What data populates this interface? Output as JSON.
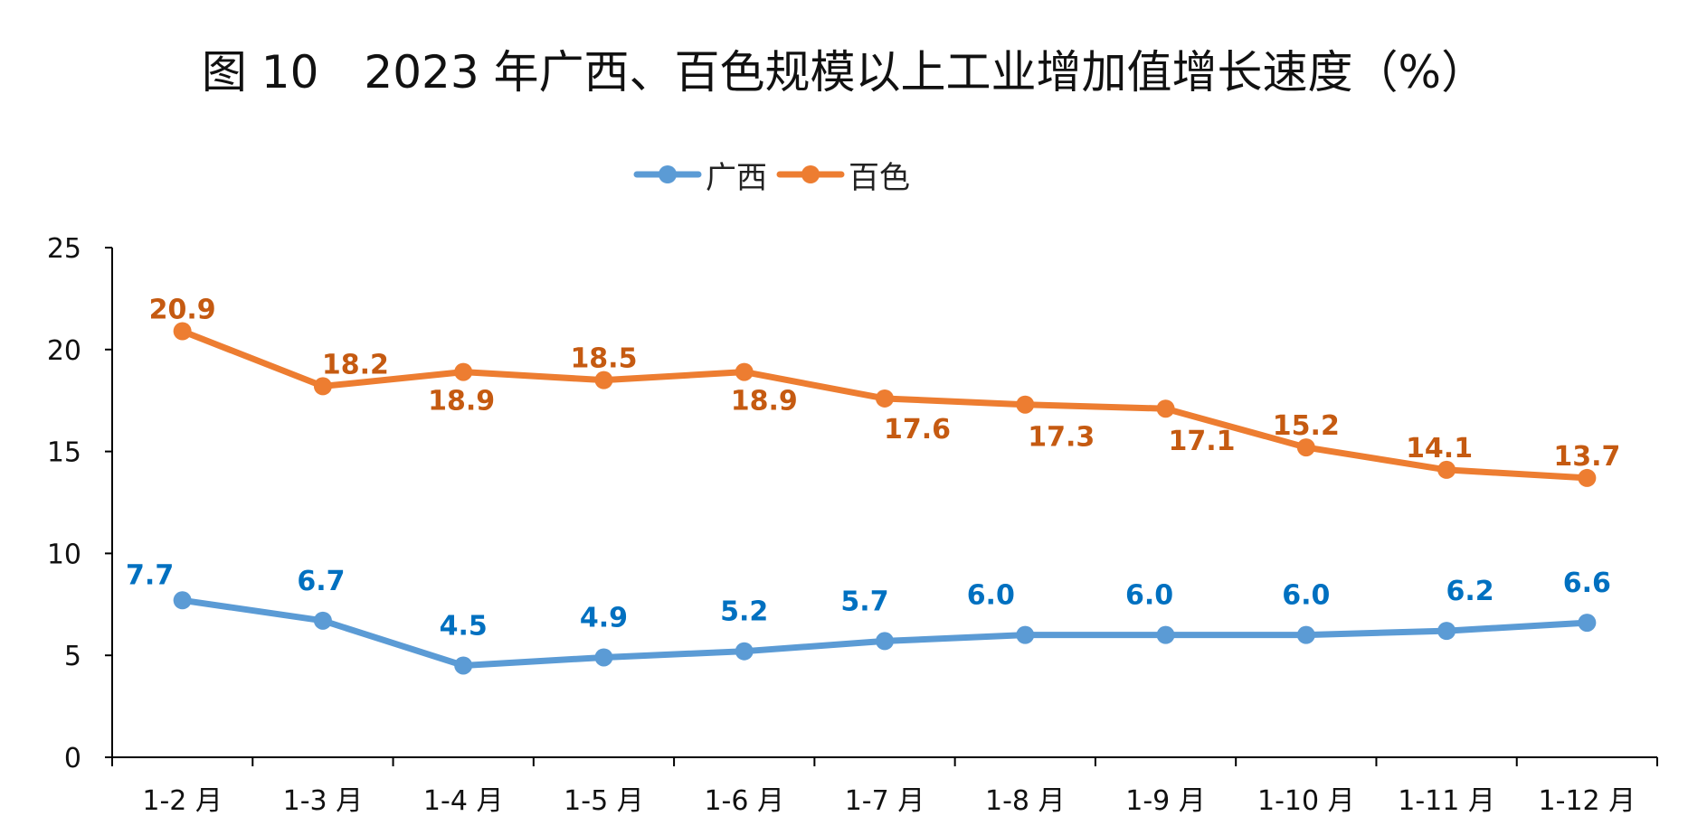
{
  "chart_data": {
    "type": "line",
    "title": "图 10　2023 年广西、百色规模以上工业增加值增长速度（%）",
    "categories": [
      "1-2 月",
      "1-3 月",
      "1-4 月",
      "1-5 月",
      "1-6 月",
      "1-7 月",
      "1-8 月",
      "1-9 月",
      "1-10 月",
      "1-11 月",
      "1-12 月"
    ],
    "ylim": [
      0,
      25
    ],
    "yticks": [
      0,
      5,
      10,
      15,
      20,
      25
    ],
    "grid": false,
    "legend_position": "top-center",
    "series": [
      {
        "name": "广西",
        "color": "#5B9BD5",
        "label_color": "#0070C0",
        "values": [
          7.7,
          6.7,
          4.5,
          4.9,
          5.2,
          5.7,
          6.0,
          6.0,
          6.0,
          6.2,
          6.6
        ],
        "labels": [
          "7.7",
          "6.7",
          "4.5",
          "4.9",
          "5.2",
          "5.7",
          "6.0",
          "6.0",
          "6.0",
          "6.2",
          "6.6"
        ]
      },
      {
        "name": "百色",
        "color": "#ED7D31",
        "label_color": "#C55A11",
        "values": [
          20.9,
          18.2,
          18.9,
          18.5,
          18.9,
          17.6,
          17.3,
          17.1,
          15.2,
          14.1,
          13.7
        ],
        "labels": [
          "20.9",
          "18.2",
          "18.9",
          "18.5",
          "18.9",
          "17.6",
          "17.3",
          "17.1",
          "15.2",
          "14.1",
          "13.7"
        ]
      }
    ]
  }
}
